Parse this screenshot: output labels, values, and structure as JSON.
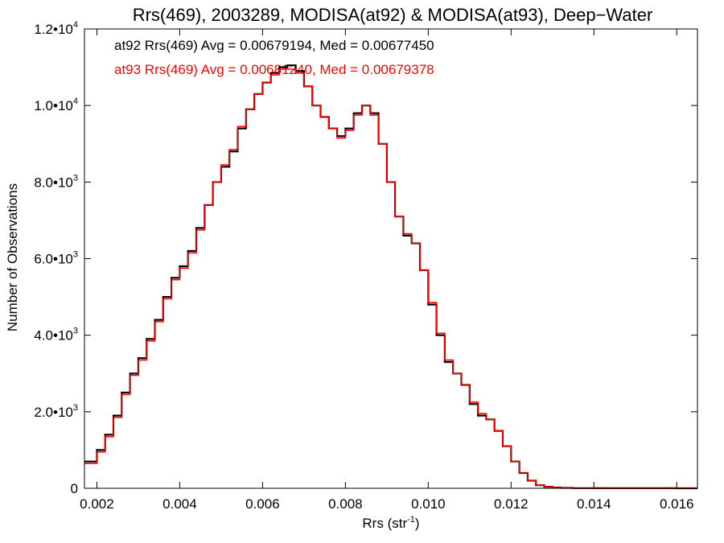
{
  "chart_data": {
    "type": "line",
    "title": "Rrs(469), 2003289, MODISA(at92) & MODISA(at93), Deep−Water",
    "xlabel_main": "Rrs (str",
    "xlabel_sup": "-1",
    "xlabel_end": ")",
    "ylabel": "Number of Observations",
    "xlim": [
      0.0017,
      0.0165
    ],
    "ylim": [
      0,
      12000
    ],
    "x_ticks": [
      0.002,
      0.004,
      0.006,
      0.008,
      0.01,
      0.012,
      0.014,
      0.016
    ],
    "x_tick_labels": [
      "0.002",
      "0.004",
      "0.006",
      "0.008",
      "0.010",
      "0.012",
      "0.014",
      "0.016"
    ],
    "y_ticks": [
      {
        "value": 0,
        "mantissa": "0",
        "exp": ""
      },
      {
        "value": 2000,
        "mantissa": "2.0•10",
        "exp": "3"
      },
      {
        "value": 4000,
        "mantissa": "4.0•10",
        "exp": "3"
      },
      {
        "value": 6000,
        "mantissa": "6.0•10",
        "exp": "3"
      },
      {
        "value": 8000,
        "mantissa": "8.0•10",
        "exp": "3"
      },
      {
        "value": 10000,
        "mantissa": "1.0•10",
        "exp": "4"
      },
      {
        "value": 12000,
        "mantissa": "1.2•10",
        "exp": "4"
      }
    ],
    "legend": [
      {
        "text": "at92 Rrs(469) Avg = 0.00679194, Med = 0.00677450",
        "color": "#000000"
      },
      {
        "text": "at93 Rrs(469) Avg = 0.00681240, Med = 0.00679378",
        "color": "#ff0000"
      }
    ],
    "grid": false,
    "series": [
      {
        "name": "at92 Rrs(469)",
        "color": "#000000",
        "x": [
          0.0017,
          0.002,
          0.0022,
          0.0024,
          0.0026,
          0.0028,
          0.003,
          0.0032,
          0.0034,
          0.0036,
          0.0038,
          0.004,
          0.0042,
          0.0044,
          0.0046,
          0.0048,
          0.005,
          0.0052,
          0.0054,
          0.0056,
          0.0058,
          0.006,
          0.0062,
          0.0064,
          0.0066,
          0.0068,
          0.007,
          0.0072,
          0.0074,
          0.0076,
          0.0078,
          0.008,
          0.0082,
          0.0084,
          0.0086,
          0.0088,
          0.009,
          0.0092,
          0.0094,
          0.0096,
          0.0098,
          0.01,
          0.0102,
          0.0104,
          0.0106,
          0.0108,
          0.011,
          0.0112,
          0.0114,
          0.0116,
          0.0118,
          0.012,
          0.0122,
          0.0124,
          0.0126,
          0.0128,
          0.013,
          0.0132,
          0.0135,
          0.014,
          0.015,
          0.016,
          0.0165
        ],
        "values": [
          700,
          1000,
          1400,
          1900,
          2500,
          3000,
          3400,
          3900,
          4400,
          5000,
          5500,
          5800,
          6200,
          6800,
          7400,
          8000,
          8400,
          8800,
          9400,
          9900,
          10300,
          10600,
          10850,
          11000,
          11050,
          10900,
          10500,
          10000,
          9700,
          9400,
          9200,
          9400,
          9800,
          10000,
          9800,
          9000,
          8000,
          7100,
          6600,
          6400,
          5700,
          4800,
          4000,
          3300,
          3000,
          2700,
          2200,
          1900,
          1800,
          1500,
          1100,
          700,
          400,
          200,
          80,
          40,
          20,
          10,
          5,
          3,
          2,
          1,
          0
        ]
      },
      {
        "name": "at93 Rrs(469)",
        "color": "#ff0000",
        "x": [
          0.0017,
          0.002,
          0.0022,
          0.0024,
          0.0026,
          0.0028,
          0.003,
          0.0032,
          0.0034,
          0.0036,
          0.0038,
          0.004,
          0.0042,
          0.0044,
          0.0046,
          0.0048,
          0.005,
          0.0052,
          0.0054,
          0.0056,
          0.0058,
          0.006,
          0.0062,
          0.0064,
          0.0066,
          0.0068,
          0.007,
          0.0072,
          0.0074,
          0.0076,
          0.0078,
          0.008,
          0.0082,
          0.0084,
          0.0086,
          0.0088,
          0.009,
          0.0092,
          0.0094,
          0.0096,
          0.0098,
          0.01,
          0.0102,
          0.0104,
          0.0106,
          0.0108,
          0.011,
          0.0112,
          0.0114,
          0.0116,
          0.0118,
          0.012,
          0.0122,
          0.0124,
          0.0126,
          0.0128,
          0.013,
          0.0132,
          0.0135,
          0.014,
          0.015,
          0.016,
          0.0165
        ],
        "values": [
          650,
          950,
          1350,
          1850,
          2450,
          2950,
          3350,
          3850,
          4350,
          4950,
          5450,
          5750,
          6150,
          6750,
          7400,
          8000,
          8450,
          8850,
          9450,
          9900,
          10300,
          10600,
          10800,
          10950,
          10950,
          10850,
          10500,
          10000,
          9700,
          9400,
          9150,
          9350,
          9750,
          10000,
          9750,
          9000,
          8000,
          7100,
          6650,
          6400,
          5700,
          4850,
          4050,
          3350,
          3000,
          2700,
          2250,
          1950,
          1800,
          1500,
          1100,
          700,
          400,
          200,
          80,
          40,
          20,
          10,
          5,
          3,
          2,
          1,
          0
        ]
      }
    ]
  }
}
